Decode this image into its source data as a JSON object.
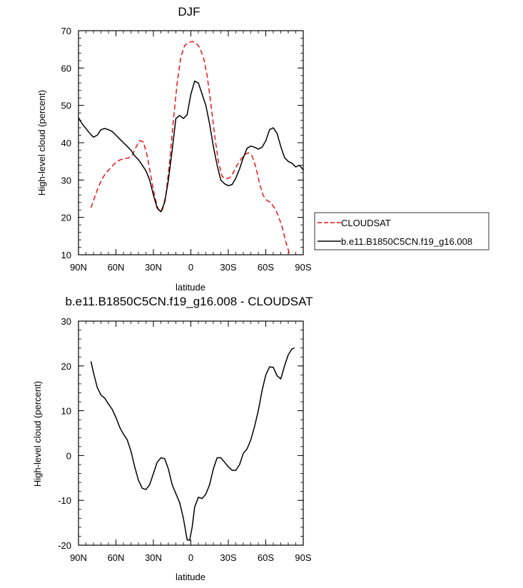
{
  "chart_data": [
    {
      "type": "line",
      "title": "DJF",
      "xlabel": "latitude",
      "ylabel": "High-level cloud (percent)",
      "xlim": [
        -90,
        90
      ],
      "ylim": [
        10,
        70
      ],
      "x_ticks": [
        {
          "value": -90,
          "label": "90N"
        },
        {
          "value": -60,
          "label": "60N"
        },
        {
          "value": -30,
          "label": "30N"
        },
        {
          "value": 0,
          "label": "0"
        },
        {
          "value": 30,
          "label": "30S"
        },
        {
          "value": 60,
          "label": "60S"
        },
        {
          "value": 90,
          "label": "90S"
        }
      ],
      "y_ticks": [
        10,
        20,
        30,
        40,
        50,
        60,
        70
      ],
      "legend_position": "right",
      "series": [
        {
          "name": "CLOUDSAT",
          "color": "#e8141a",
          "dash": true,
          "x": [
            -80,
            -77,
            -74,
            -71,
            -68,
            -65,
            -62,
            -59,
            -56,
            -53,
            -50,
            -47,
            -44,
            -41,
            -38,
            -35,
            -32,
            -29,
            -26,
            -23,
            -20,
            -17,
            -14,
            -11,
            -8,
            -5,
            -2,
            1,
            4,
            7,
            10,
            13,
            16,
            19,
            22,
            25,
            28,
            31,
            34,
            37,
            40,
            43,
            46,
            49,
            52,
            55,
            58,
            61,
            64,
            67,
            70,
            73,
            76,
            79,
            80
          ],
          "y": [
            22.6,
            25.5,
            28.2,
            30.4,
            31.9,
            33.0,
            34.1,
            35.0,
            35.5,
            35.8,
            35.9,
            36.6,
            38.8,
            40.6,
            40.2,
            36.5,
            31.0,
            25.6,
            22.0,
            21.8,
            26.0,
            35.0,
            46.0,
            56.0,
            63.0,
            66.0,
            66.8,
            67.1,
            66.8,
            65.5,
            63.0,
            58.0,
            50.5,
            42.0,
            35.0,
            31.0,
            30.3,
            30.6,
            32.0,
            34.0,
            35.5,
            36.8,
            37.3,
            36.5,
            33.5,
            29.0,
            25.8,
            24.5,
            24.0,
            22.5,
            20.5,
            17.5,
            13.5,
            10.2,
            10.0
          ]
        },
        {
          "name": "b.e11.B1850C5CN.f19_g16.008",
          "color": "#000000",
          "dash": false,
          "x": [
            -90,
            -87,
            -84,
            -81,
            -78,
            -75,
            -72,
            -69,
            -66,
            -63,
            -60,
            -57,
            -54,
            -51,
            -48,
            -45,
            -42,
            -39,
            -36,
            -33,
            -30,
            -27,
            -24,
            -21,
            -18,
            -15,
            -12,
            -9,
            -6,
            -3,
            0,
            3,
            6,
            9,
            12,
            15,
            18,
            21,
            24,
            27,
            30,
            33,
            36,
            39,
            42,
            45,
            48,
            51,
            54,
            57,
            60,
            63,
            66,
            69,
            72,
            75,
            78,
            81,
            84,
            87,
            90
          ],
          "y": [
            46.7,
            45.0,
            43.8,
            42.5,
            41.5,
            42.0,
            43.5,
            43.8,
            43.5,
            43.0,
            42.0,
            41.0,
            40.0,
            39.0,
            38.0,
            36.5,
            35.5,
            34.0,
            32.5,
            30.0,
            26.0,
            22.5,
            21.5,
            24.0,
            30.0,
            38.0,
            46.5,
            47.3,
            46.5,
            47.5,
            53.0,
            56.5,
            56.0,
            53.0,
            50.0,
            45.0,
            39.0,
            34.0,
            30.0,
            29.0,
            28.5,
            28.8,
            30.5,
            33.0,
            36.0,
            38.5,
            39.1,
            38.8,
            38.3,
            38.8,
            40.5,
            43.5,
            44.0,
            42.5,
            39.0,
            36.0,
            35.0,
            34.5,
            33.5,
            34.0,
            32.7
          ]
        }
      ]
    },
    {
      "type": "line",
      "title": "b.e11.B1850C5CN.f19_g16.008 - CLOUDSAT",
      "xlabel": "latitude",
      "ylabel": "High-level cloud (percent)",
      "xlim": [
        -90,
        90
      ],
      "ylim": [
        -20,
        30
      ],
      "x_ticks": [
        {
          "value": -90,
          "label": "90N"
        },
        {
          "value": -60,
          "label": "60N"
        },
        {
          "value": -30,
          "label": "30N"
        },
        {
          "value": 0,
          "label": "0"
        },
        {
          "value": 30,
          "label": "30S"
        },
        {
          "value": 60,
          "label": "60S"
        },
        {
          "value": 90,
          "label": "90S"
        }
      ],
      "y_ticks": [
        -20,
        -10,
        0,
        10,
        20,
        30
      ],
      "series": [
        {
          "color": "#000000",
          "dash": false,
          "x": [
            -80,
            -78,
            -75,
            -72,
            -69,
            -66,
            -63,
            -60,
            -57,
            -54,
            -51,
            -48,
            -45,
            -42,
            -39,
            -36,
            -33,
            -30,
            -27,
            -24,
            -21,
            -18,
            -15,
            -12,
            -9,
            -6,
            -3,
            -1,
            1,
            3,
            6,
            9,
            12,
            15,
            18,
            21,
            24,
            27,
            30,
            33,
            36,
            39,
            42,
            45,
            48,
            51,
            54,
            57,
            60,
            63,
            66,
            69,
            72,
            75,
            78,
            81,
            83
          ],
          "y": [
            21.0,
            18.5,
            15.2,
            13.5,
            12.8,
            11.5,
            10.3,
            8.5,
            6.3,
            4.8,
            3.5,
            1.0,
            -2.5,
            -5.5,
            -7.3,
            -7.6,
            -6.5,
            -4.0,
            -1.5,
            -0.5,
            -0.7,
            -3.0,
            -6.5,
            -8.5,
            -10.5,
            -14.0,
            -18.8,
            -18.9,
            -16.0,
            -11.5,
            -9.3,
            -9.6,
            -8.6,
            -6.5,
            -3.0,
            -0.5,
            -0.5,
            -1.5,
            -2.5,
            -3.3,
            -3.3,
            -2.0,
            0.5,
            1.5,
            3.5,
            6.5,
            10.0,
            14.5,
            18.0,
            19.8,
            19.7,
            17.8,
            17.1,
            20.0,
            22.5,
            23.8,
            24.0
          ]
        }
      ]
    }
  ]
}
